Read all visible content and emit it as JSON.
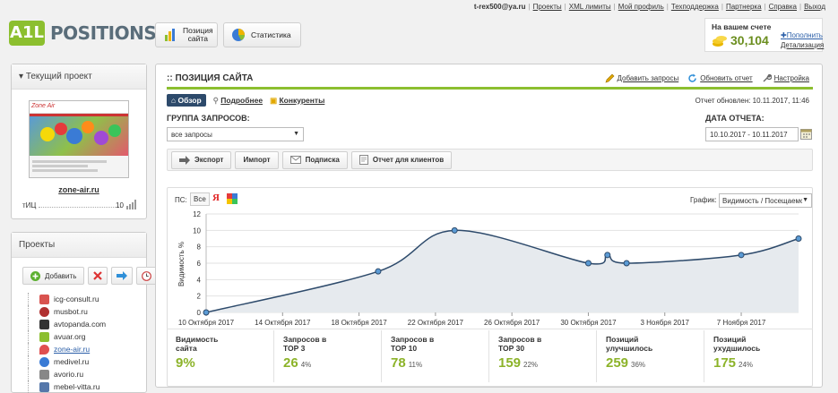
{
  "header": {
    "logo_mark": "A1L",
    "logo_text": "POSITIONS",
    "tabs": [
      {
        "label_line1": "Позиция",
        "label_line2": "сайта"
      },
      {
        "label": "Статистика"
      }
    ],
    "nav": {
      "email": "t-rex500@ya.ru",
      "links": [
        "Проекты",
        "XML лимиты",
        "Мой профиль",
        "Техподдержка",
        "Партнерка",
        "Справка",
        "Выход"
      ]
    },
    "account": {
      "label": "На вашем счете",
      "balance": "30,104",
      "topup": "Пополнить",
      "details": "Детализация"
    }
  },
  "current_project": {
    "title": "Текущий проект",
    "site": "zone-air.ru",
    "tic_label": "тИЦ",
    "tic_value": "10",
    "thumb_logo": "Zone Air"
  },
  "projects": {
    "title": "Проекты",
    "add_label": "Добавить",
    "items": [
      "icg-consult.ru",
      "musbot.ru",
      "avtopanda.com",
      "avuar.org",
      "zone-air.ru",
      "medivel.ru",
      "avorio.ru",
      "mebel-vitta.ru"
    ],
    "colors": [
      "#d9534f",
      "#b03030",
      "#333333",
      "#8cbf2f",
      "#e05050",
      "#3a7bd5",
      "#888888",
      "#5577aa"
    ]
  },
  "main": {
    "title": ":: ПОЗИЦИЯ САЙТА",
    "actions": [
      "Добавить запросы",
      "Обновить отчет",
      "Настройка"
    ],
    "subtabs": [
      "Обзор",
      "Подробнее",
      "Конкуренты"
    ],
    "report_updated": "Отчет обновлен: 10.11.2017, 11:46",
    "group_label": "ГРУППА ЗАПРОСОВ:",
    "group_value": "все запросы",
    "date_label": "ДАТА ОТЧЕТА:",
    "date_value": "10.10.2017 - 10.11.2017",
    "toolbar": [
      "Экспорт",
      "Импорт",
      "Подписка",
      "Отчет для клиентов"
    ],
    "ps_label": "ПС:",
    "ps_all": "Все",
    "graph_label": "График:",
    "graph_value": "Видимость / Посещаемс"
  },
  "chart_data": {
    "type": "line",
    "ylabel": "Видимость %",
    "ylim": [
      0,
      12
    ],
    "yticks": [
      0,
      2,
      4,
      6,
      8,
      10,
      12
    ],
    "xlim": [
      0,
      31
    ],
    "xtick_labels": [
      {
        "x": 0,
        "label": "10 Октября 2017"
      },
      {
        "x": 4,
        "label": "14 Октября 2017"
      },
      {
        "x": 8,
        "label": "18 Октября 2017"
      },
      {
        "x": 12,
        "label": "22 Октября 2017"
      },
      {
        "x": 16,
        "label": "26 Октября 2017"
      },
      {
        "x": 20,
        "label": "30 Октября 2017"
      },
      {
        "x": 24,
        "label": "3 Ноября 2017"
      },
      {
        "x": 28,
        "label": "7 Ноября 2017"
      }
    ],
    "points": [
      {
        "x": 0,
        "y": 0
      },
      {
        "x": 9,
        "y": 5
      },
      {
        "x": 13,
        "y": 10
      },
      {
        "x": 20,
        "y": 6
      },
      {
        "x": 21,
        "y": 7
      },
      {
        "x": 22,
        "y": 6
      },
      {
        "x": 28,
        "y": 7
      },
      {
        "x": 31,
        "y": 9
      }
    ],
    "line_color": "#2d4a6b",
    "fill_color": "#e6eaee"
  },
  "stats": [
    {
      "label1": "Видимость",
      "label2": "сайта",
      "value": "9%",
      "pct": ""
    },
    {
      "label1": "Запросов в",
      "label2": "ТОР 3",
      "value": "26",
      "pct": "4%"
    },
    {
      "label1": "Запросов в",
      "label2": "ТОР 10",
      "value": "78",
      "pct": "11%"
    },
    {
      "label1": "Запросов в",
      "label2": "ТОР 30",
      "value": "159",
      "pct": "22%"
    },
    {
      "label1": "Позиций",
      "label2": "улучшилось",
      "value": "259",
      "pct": "36%"
    },
    {
      "label1": "Позиций",
      "label2": "ухудшилось",
      "value": "175",
      "pct": "24%"
    }
  ]
}
